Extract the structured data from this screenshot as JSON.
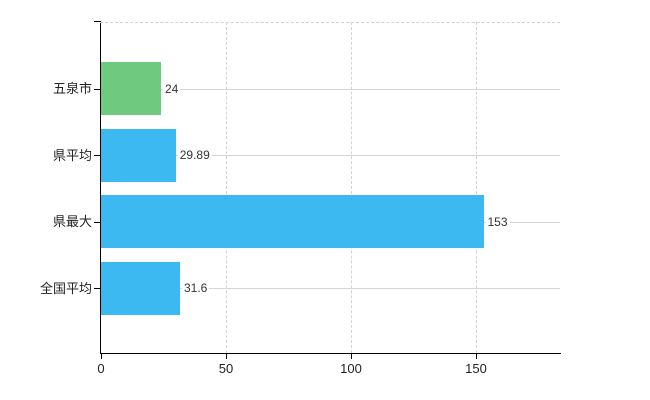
{
  "chart_data": {
    "type": "bar",
    "orientation": "horizontal",
    "title": "",
    "categories": [
      "五泉市",
      "県平均",
      "県最大",
      "全国平均"
    ],
    "values": [
      24,
      29.89,
      153,
      31.6
    ],
    "value_labels": [
      "24",
      "29.89",
      "153",
      "31.6"
    ],
    "bar_colors": [
      "#6fca80",
      "#3cb9f0",
      "#3cb9f0",
      "#3cb9f0"
    ],
    "x_ticks": [
      0,
      50,
      100,
      150
    ],
    "x_tick_labels": [
      "0",
      "50",
      "100",
      "150"
    ],
    "xlim": [
      0,
      184
    ],
    "xlabel": "",
    "ylabel": "",
    "grid": {
      "horizontal_category_lines": true,
      "vertical_tick_lines_dashed": true,
      "top_border_dashed": true
    },
    "legend": "none",
    "colors": {
      "axis": "#000000",
      "horizontal_grid": "#cfd7cf",
      "vertical_grid": "#d2d2da",
      "category_label_text": "#222222",
      "value_label_text": "#333333",
      "background": "#ffffff"
    }
  }
}
